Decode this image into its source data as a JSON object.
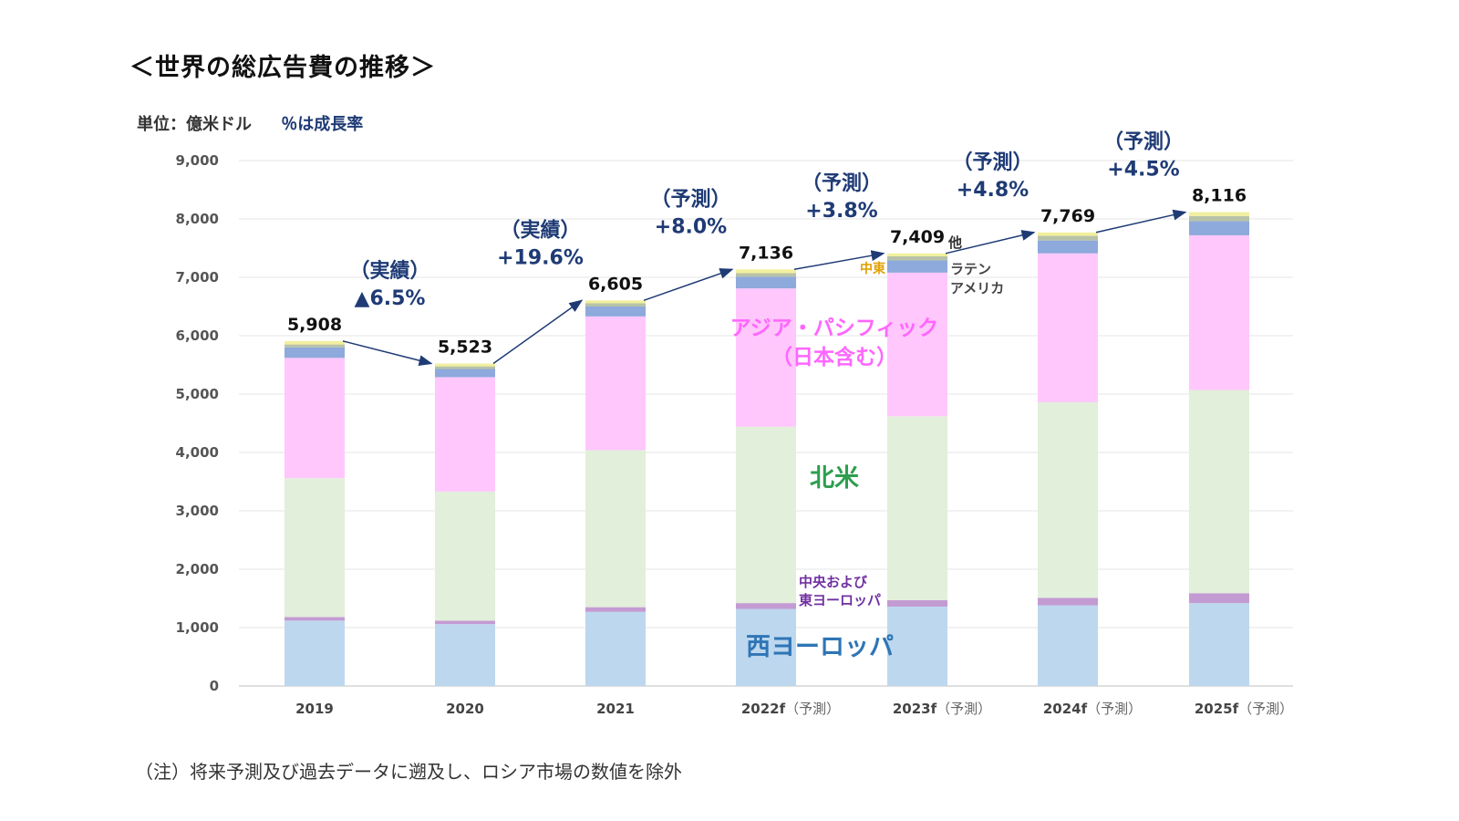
{
  "header": {
    "title": "＜世界の総広告費の推移＞",
    "unit": "単位：億米ドル",
    "growth_note": "％は成長率"
  },
  "footer": {
    "note": "（注）将来予測及び過去データに遡及し、ロシア市場の数値を除外"
  },
  "colors": {
    "western_europe": "#bdd7ee",
    "central_eastern_europe": "#c39bd3",
    "north_america": "#e2efda",
    "asia_pacific": "#ffc7fc",
    "latin_america": "#8ea9db",
    "middle_east": "#b7c2a8",
    "other": "#f2ef9e",
    "trend_line": "#1f3b75"
  },
  "chart_data": {
    "type": "bar",
    "stacked": true,
    "categories": [
      {
        "year": "2019",
        "sub": ""
      },
      {
        "year": "2020",
        "sub": ""
      },
      {
        "year": "2021",
        "sub": ""
      },
      {
        "year": "2022f",
        "sub": "（予測）"
      },
      {
        "year": "2023f",
        "sub": "（予測）"
      },
      {
        "year": "2024f",
        "sub": "（予測）"
      },
      {
        "year": "2025f",
        "sub": "（予測）"
      }
    ],
    "ylim": [
      0,
      9000
    ],
    "yticks": [
      "0",
      "1,000",
      "2,000",
      "3,000",
      "4,000",
      "5,000",
      "6,000",
      "7,000",
      "8,000",
      "9,000"
    ],
    "grid": true,
    "series": [
      {
        "key": "western_europe",
        "values": [
          1120,
          1060,
          1270,
          1320,
          1360,
          1380,
          1420
        ]
      },
      {
        "key": "central_eastern_europe",
        "values": [
          60,
          60,
          80,
          100,
          110,
          130,
          170
        ]
      },
      {
        "key": "north_america",
        "values": [
          2380,
          2210,
          2690,
          3020,
          3150,
          3350,
          3480
        ]
      },
      {
        "key": "asia_pacific",
        "values": [
          2060,
          1960,
          2290,
          2370,
          2460,
          2550,
          2650
        ]
      },
      {
        "key": "latin_america",
        "values": [
          180,
          140,
          170,
          200,
          210,
          220,
          240
        ]
      },
      {
        "key": "middle_east",
        "values": [
          50,
          45,
          55,
          60,
          70,
          80,
          90
        ]
      },
      {
        "key": "other",
        "values": [
          58,
          48,
          50,
          66,
          49,
          59,
          66
        ]
      }
    ],
    "totals": [
      "5,908",
      "5,523",
      "6,605",
      "7,136",
      "7,409",
      "7,769",
      "8,116"
    ],
    "total_values": [
      5908,
      5523,
      6605,
      7136,
      7409,
      7769,
      8116
    ],
    "growth": [
      {
        "kind": "（実績）",
        "value": "▲6.5%"
      },
      {
        "kind": "（実績）",
        "value": "+19.6%"
      },
      {
        "kind": "（予測）",
        "value": "+8.0%"
      },
      {
        "kind": "（予測）",
        "value": "+3.8%"
      },
      {
        "kind": "（予測）",
        "value": "+4.8%"
      },
      {
        "kind": "（予測）",
        "value": "+4.5%"
      }
    ],
    "labels": {
      "western_europe": "西ヨーロッパ",
      "central_eastern_europe_1": "中央および",
      "central_eastern_europe_2": "東ヨーロッパ",
      "north_america": "北米",
      "asia_pacific_1": "アジア・パシフィック",
      "asia_pacific_2": "（日本含む）",
      "latin_america_1": "ラテン",
      "latin_america_2": "アメリカ",
      "middle_east": "中東",
      "other": "他"
    }
  }
}
